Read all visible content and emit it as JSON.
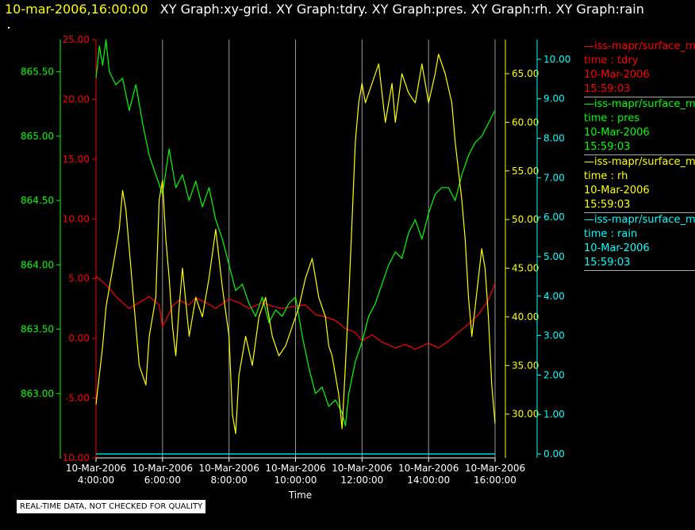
{
  "title": {
    "datetime": "10-mar-2006,16:00:00",
    "graphs": "XY Graph:xy-grid.  XY Graph:tdry.  XY Graph:pres.  XY Graph:rh.  XY Graph:rain"
  },
  "notice": "REAL-TIME DATA, NOT CHECKED FOR QUALITY",
  "colors": {
    "background": "#000000",
    "tdry": "#ff0000",
    "pres": "#00ff00",
    "rh": "#ffff00",
    "rain": "#00ffff",
    "grid": "#ffffff"
  },
  "legend": [
    {
      "line1": "—iss-mapr/surface_m",
      "line2": "time : tdry",
      "line3": "10-Mar-2006",
      "line4": "15:59:03",
      "color": "#ff0000"
    },
    {
      "line1": "—iss-mapr/surface_m",
      "line2": "time : pres",
      "line3": "10-Mar-2006",
      "line4": "15:59:03",
      "color": "#00ff00"
    },
    {
      "line1": "—iss-mapr/surface_m",
      "line2": "time : rh",
      "line3": "10-Mar-2006",
      "line4": "15:59:03",
      "color": "#ffff00"
    },
    {
      "line1": "—iss-mapr/surface_m",
      "line2": "time : rain",
      "line3": "10-Mar-2006",
      "line4": "15:59:03",
      "color": "#00ffff"
    }
  ],
  "chart_data": {
    "type": "line",
    "xlabel": "Time",
    "xlim": [
      4.0,
      16.0
    ],
    "x_ticks": [
      {
        "date": "10-Mar-2006",
        "time": "4:00:00",
        "value": 4
      },
      {
        "date": "10-Mar-2006",
        "time": "6:00:00",
        "value": 6
      },
      {
        "date": "10-Mar-2006",
        "time": "8:00:00",
        "value": 8
      },
      {
        "date": "10-Mar-2006",
        "time": "10:00:00",
        "value": 10
      },
      {
        "date": "10-Mar-2006",
        "time": "12:00:00",
        "value": 12
      },
      {
        "date": "10-Mar-2006",
        "time": "14:00:00",
        "value": 14
      },
      {
        "date": "10-Mar-2006",
        "time": "16:00:00",
        "value": 16
      }
    ],
    "grid": "vertical lines at each x tick",
    "axes": [
      {
        "id": "tdry",
        "color": "#ff0000",
        "ylim": [
          -10,
          25
        ],
        "ticks": [
          "-10.00",
          "-5.00",
          "0.00",
          "5.00",
          "10.00",
          "15.00",
          "20.00",
          "25.00"
        ],
        "side": "left-inner"
      },
      {
        "id": "pres",
        "color": "#00ff00",
        "ylim": [
          862.5,
          865.75
        ],
        "ticks": [
          "863.00",
          "863.50",
          "864.00",
          "864.50",
          "865.00",
          "865.50"
        ],
        "side": "left-outer"
      },
      {
        "id": "rh",
        "color": "#ffff00",
        "ylim": [
          25.5,
          68.5
        ],
        "ticks": [
          "30.00",
          "35.00",
          "40.00",
          "45.00",
          "50.00",
          "55.00",
          "60.00",
          "65.00"
        ],
        "side": "right-inner"
      },
      {
        "id": "rain",
        "color": "#00ffff",
        "ylim": [
          -0.1,
          10.5
        ],
        "ticks": [
          "0.00",
          "1.00",
          "2.00",
          "3.00",
          "4.00",
          "5.00",
          "6.00",
          "7.00",
          "8.00",
          "9.00",
          "10.00"
        ],
        "side": "right-outer"
      }
    ],
    "series": [
      {
        "name": "tdry",
        "axis": "tdry",
        "color": "#ff0000",
        "x": [
          4.0,
          4.3,
          4.6,
          5.0,
          5.3,
          5.6,
          5.9,
          6.0,
          6.1,
          6.3,
          6.5,
          6.8,
          7.0,
          7.3,
          7.6,
          8.0,
          8.3,
          8.6,
          9.0,
          9.3,
          9.6,
          10.0,
          10.3,
          10.6,
          10.9,
          11.2,
          11.5,
          11.8,
          12.0,
          12.3,
          12.6,
          13.0,
          13.3,
          13.6,
          14.0,
          14.3,
          14.6,
          14.9,
          15.2,
          15.5,
          15.8,
          16.0
        ],
        "y": [
          5.2,
          4.5,
          3.5,
          2.5,
          3.0,
          3.5,
          2.8,
          1.0,
          1.5,
          2.7,
          3.2,
          2.8,
          3.4,
          3.0,
          2.5,
          3.3,
          3.0,
          2.5,
          3.0,
          2.7,
          2.5,
          2.7,
          2.8,
          2.0,
          1.8,
          1.5,
          0.8,
          0.5,
          -0.2,
          0.3,
          -0.3,
          -0.8,
          -0.5,
          -0.9,
          -0.4,
          -0.8,
          -0.2,
          0.5,
          1.2,
          2.0,
          3.2,
          4.6
        ]
      },
      {
        "name": "pres",
        "axis": "pres",
        "color": "#00ff00",
        "x": [
          4.0,
          4.1,
          4.2,
          4.3,
          4.4,
          4.6,
          4.8,
          5.0,
          5.2,
          5.4,
          5.6,
          5.8,
          6.0,
          6.2,
          6.4,
          6.6,
          6.8,
          7.0,
          7.2,
          7.4,
          7.6,
          7.8,
          8.0,
          8.2,
          8.4,
          8.6,
          8.8,
          9.0,
          9.2,
          9.4,
          9.6,
          9.8,
          10.0,
          10.2,
          10.4,
          10.6,
          10.8,
          11.0,
          11.2,
          11.4,
          11.5,
          11.6,
          11.8,
          12.0,
          12.2,
          12.4,
          12.6,
          12.8,
          13.0,
          13.2,
          13.4,
          13.6,
          13.8,
          14.0,
          14.2,
          14.4,
          14.6,
          14.8,
          15.0,
          15.2,
          15.4,
          15.6,
          15.8,
          16.0
        ],
        "y": [
          865.45,
          865.7,
          865.55,
          865.75,
          865.5,
          865.4,
          865.45,
          865.2,
          865.4,
          865.1,
          864.85,
          864.7,
          864.55,
          864.9,
          864.6,
          864.7,
          864.5,
          864.65,
          864.45,
          864.6,
          864.35,
          864.2,
          864.0,
          863.8,
          863.85,
          863.7,
          863.6,
          863.75,
          863.55,
          863.65,
          863.6,
          863.7,
          863.75,
          863.45,
          863.2,
          863.0,
          863.05,
          862.9,
          862.95,
          862.85,
          862.75,
          863.0,
          863.25,
          863.4,
          863.6,
          863.7,
          863.85,
          864.0,
          864.1,
          864.05,
          864.25,
          864.35,
          864.2,
          864.4,
          864.55,
          864.6,
          864.6,
          864.5,
          864.7,
          864.85,
          864.95,
          865.0,
          865.1,
          865.2
        ]
      },
      {
        "name": "rh",
        "axis": "rh",
        "color": "#ffff00",
        "x": [
          4.0,
          4.1,
          4.2,
          4.3,
          4.5,
          4.7,
          4.8,
          4.9,
          5.0,
          5.1,
          5.2,
          5.3,
          5.5,
          5.6,
          5.8,
          5.9,
          6.0,
          6.1,
          6.2,
          6.3,
          6.4,
          6.5,
          6.6,
          6.8,
          7.0,
          7.2,
          7.4,
          7.6,
          7.8,
          8.0,
          8.1,
          8.2,
          8.3,
          8.5,
          8.7,
          8.9,
          9.1,
          9.3,
          9.5,
          9.7,
          9.9,
          10.1,
          10.3,
          10.5,
          10.7,
          10.9,
          11.0,
          11.1,
          11.2,
          11.3,
          11.4,
          11.5,
          11.6,
          11.7,
          11.8,
          11.9,
          12.0,
          12.1,
          12.3,
          12.5,
          12.7,
          12.9,
          13.0,
          13.2,
          13.4,
          13.6,
          13.8,
          14.0,
          14.2,
          14.3,
          14.5,
          14.7,
          14.8,
          14.9,
          15.0,
          15.1,
          15.2,
          15.3,
          15.4,
          15.5,
          15.6,
          15.7,
          15.8,
          15.9,
          16.0
        ],
        "y": [
          31.0,
          34.0,
          37.0,
          41.0,
          45.0,
          49.0,
          53.0,
          51.0,
          47.0,
          43.0,
          39.0,
          35.0,
          33.0,
          38.0,
          42.0,
          52.0,
          54.0,
          48.0,
          44.0,
          39.0,
          36.0,
          41.0,
          45.0,
          38.0,
          42.0,
          40.0,
          44.0,
          49.0,
          43.0,
          38.0,
          30.0,
          28.0,
          34.0,
          38.0,
          35.0,
          40.0,
          42.0,
          38.0,
          36.0,
          37.0,
          39.0,
          41.0,
          44.0,
          46.0,
          42.0,
          40.0,
          37.0,
          36.0,
          34.0,
          32.0,
          28.5,
          35.0,
          42.0,
          50.0,
          58.0,
          62.0,
          64.0,
          62.0,
          64.0,
          66.0,
          60.0,
          64.0,
          60.0,
          65.0,
          63.0,
          62.0,
          66.0,
          62.0,
          65.0,
          67.0,
          65.0,
          62.0,
          58.0,
          55.0,
          52.0,
          48.0,
          42.0,
          38.0,
          41.0,
          44.0,
          47.0,
          45.0,
          40.0,
          33.0,
          29.0
        ]
      },
      {
        "name": "rain",
        "axis": "rain",
        "color": "#00ffff",
        "x": [
          4.0,
          16.0
        ],
        "y": [
          0.0,
          0.0
        ]
      }
    ]
  }
}
